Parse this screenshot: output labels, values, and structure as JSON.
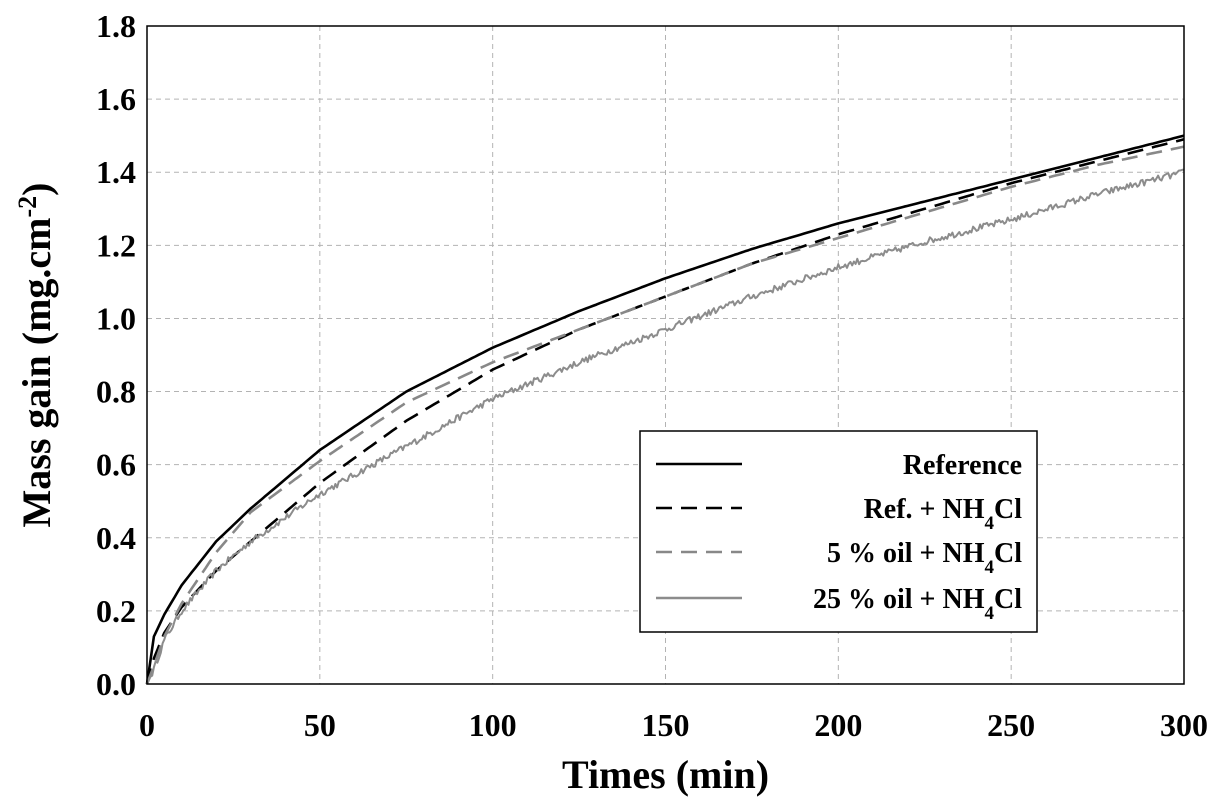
{
  "chart_data": {
    "type": "line",
    "xlabel": "Times (min)",
    "ylabel_main": "Mass gain (mg.cm",
    "ylabel_sup": "-2",
    "ylabel_end": ")",
    "xlim": [
      0,
      300
    ],
    "ylim": [
      0,
      1.8
    ],
    "xticks": [
      "0",
      "50",
      "100",
      "150",
      "200",
      "250",
      "300"
    ],
    "yticks": [
      "0.0",
      "0.2",
      "0.4",
      "0.6",
      "0.8",
      "1.0",
      "1.2",
      "1.4",
      "1.6",
      "1.8"
    ],
    "grid": true,
    "legend_position": "center-right",
    "series": [
      {
        "name": "Reference",
        "color": "#000000",
        "dash": "solid",
        "x": [
          0,
          2,
          5,
          10,
          20,
          30,
          50,
          75,
          100,
          125,
          150,
          175,
          200,
          225,
          250,
          275,
          300
        ],
        "y": [
          0.0,
          0.13,
          0.19,
          0.27,
          0.39,
          0.48,
          0.64,
          0.8,
          0.92,
          1.02,
          1.11,
          1.19,
          1.26,
          1.32,
          1.38,
          1.44,
          1.5
        ]
      },
      {
        "name": "Ref. + NH4Cl",
        "name_parts": [
          "Ref. + NH",
          "4",
          "Cl"
        ],
        "color": "#000000",
        "dash": "dashed",
        "x": [
          0,
          2,
          5,
          10,
          20,
          30,
          50,
          75,
          100,
          125,
          150,
          175,
          200,
          225,
          250,
          275,
          300
        ],
        "y": [
          0.0,
          0.07,
          0.14,
          0.21,
          0.31,
          0.39,
          0.55,
          0.72,
          0.86,
          0.97,
          1.06,
          1.15,
          1.23,
          1.3,
          1.37,
          1.43,
          1.49
        ]
      },
      {
        "name": "5 % oil + NH4Cl",
        "name_parts": [
          "5 % oil + NH",
          "4",
          "Cl"
        ],
        "color": "#888888",
        "dash": "dashed",
        "x": [
          0,
          2,
          5,
          10,
          20,
          30,
          50,
          75,
          100,
          125,
          150,
          175,
          200,
          225,
          250,
          275,
          300
        ],
        "y": [
          0.0,
          0.05,
          0.13,
          0.22,
          0.36,
          0.47,
          0.61,
          0.77,
          0.88,
          0.97,
          1.06,
          1.15,
          1.22,
          1.29,
          1.36,
          1.42,
          1.47
        ]
      },
      {
        "name": "25 % oil + NH4Cl",
        "name_parts": [
          "25 % oil + NH",
          "4",
          "Cl"
        ],
        "color": "#8c8c8c",
        "dash": "solid",
        "noisy": true,
        "x": [
          0,
          2,
          5,
          10,
          20,
          30,
          50,
          75,
          100,
          125,
          150,
          175,
          200,
          225,
          250,
          275,
          300
        ],
        "y": [
          0.0,
          0.04,
          0.12,
          0.2,
          0.31,
          0.39,
          0.52,
          0.65,
          0.78,
          0.88,
          0.97,
          1.06,
          1.14,
          1.21,
          1.27,
          1.34,
          1.4
        ]
      }
    ]
  }
}
